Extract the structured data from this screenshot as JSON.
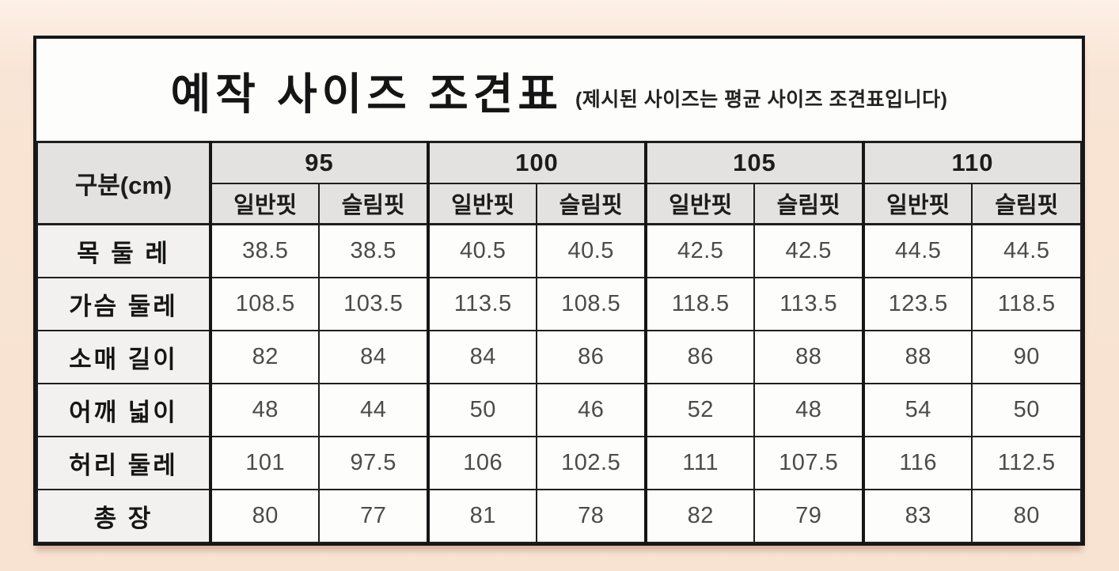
{
  "page": {
    "background_color": "#f8e2d1",
    "sheet_background": "#fdfdfc",
    "border_color": "#161616",
    "header_fill": "#e3e2e0",
    "rowlabel_fill": "#f2f1ef"
  },
  "table": {
    "title": "예작 사이즈 조견표",
    "subtitle": "(제시된 사이즈는 평균 사이즈 조견표입니다)",
    "corner_header": "구분(cm)",
    "size_groups": [
      {
        "label": "95"
      },
      {
        "label": "100"
      },
      {
        "label": "105"
      },
      {
        "label": "110"
      }
    ],
    "fit_labels": [
      "일반핏",
      "슬림핏"
    ],
    "rows": [
      {
        "label": "목 둘 레",
        "values": [
          "38.5",
          "38.5",
          "40.5",
          "40.5",
          "42.5",
          "42.5",
          "44.5",
          "44.5"
        ]
      },
      {
        "label": "가슴 둘레",
        "values": [
          "108.5",
          "103.5",
          "113.5",
          "108.5",
          "118.5",
          "113.5",
          "123.5",
          "118.5"
        ]
      },
      {
        "label": "소매 길이",
        "values": [
          "82",
          "84",
          "84",
          "86",
          "86",
          "88",
          "88",
          "90"
        ]
      },
      {
        "label": "어깨 넓이",
        "values": [
          "48",
          "44",
          "50",
          "46",
          "52",
          "48",
          "54",
          "50"
        ]
      },
      {
        "label": "허리 둘레",
        "values": [
          "101",
          "97.5",
          "106",
          "102.5",
          "111",
          "107.5",
          "116",
          "112.5"
        ]
      },
      {
        "label": "총 장",
        "values": [
          "80",
          "77",
          "81",
          "78",
          "82",
          "79",
          "83",
          "80"
        ]
      }
    ]
  }
}
